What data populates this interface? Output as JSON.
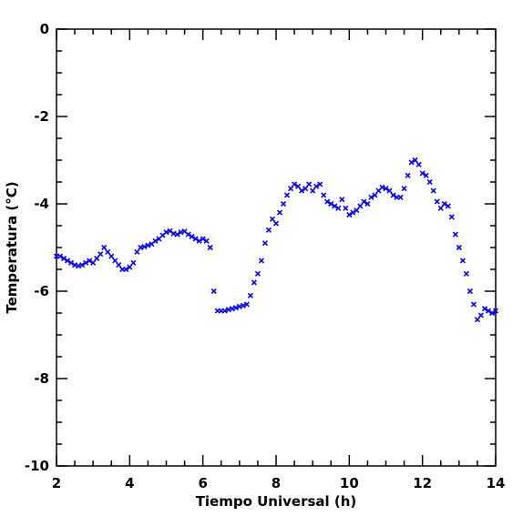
{
  "chart_data": {
    "type": "scatter",
    "xlabel": "Tiempo Universal (h)",
    "ylabel": "Temperatura (°C)",
    "xlim": [
      2,
      14
    ],
    "ylim": [
      -10,
      0
    ],
    "xticks": [
      2,
      4,
      6,
      8,
      10,
      12,
      14
    ],
    "yticks": [
      -10,
      -8,
      -6,
      -4,
      -2,
      0
    ],
    "xminorticks": [
      2.5,
      3,
      3.5,
      4.5,
      5,
      5.5,
      6.5,
      7,
      7.5,
      8.5,
      9,
      9.5,
      10.5,
      11,
      11.5,
      12.5,
      13,
      13.5
    ],
    "yminorticks": [
      -0.5,
      -1,
      -1.5,
      -2.5,
      -3,
      -3.5,
      -4.5,
      -5,
      -5.5,
      -6.5,
      -7,
      -7.5,
      -8.5,
      -9,
      -9.5
    ],
    "color": "#0000ff",
    "x": [
      2.0,
      2.1,
      2.2,
      2.3,
      2.4,
      2.5,
      2.6,
      2.7,
      2.8,
      2.9,
      3.0,
      3.1,
      3.2,
      3.3,
      3.4,
      3.5,
      3.6,
      3.7,
      3.8,
      3.9,
      4.0,
      4.1,
      4.2,
      4.3,
      4.4,
      4.5,
      4.6,
      4.7,
      4.8,
      4.9,
      5.0,
      5.1,
      5.2,
      5.3,
      5.4,
      5.5,
      5.6,
      5.7,
      5.8,
      5.9,
      6.0,
      6.1,
      6.2,
      6.3,
      6.4,
      6.5,
      6.6,
      6.7,
      6.8,
      6.9,
      7.0,
      7.1,
      7.2,
      7.3,
      7.4,
      7.5,
      7.6,
      7.7,
      7.8,
      7.9,
      8.0,
      8.1,
      8.2,
      8.3,
      8.4,
      8.5,
      8.6,
      8.7,
      8.8,
      8.9,
      9.0,
      9.1,
      9.2,
      9.3,
      9.4,
      9.5,
      9.6,
      9.7,
      9.8,
      9.9,
      10.0,
      10.1,
      10.2,
      10.3,
      10.4,
      10.5,
      10.6,
      10.7,
      10.8,
      10.9,
      11.0,
      11.1,
      11.2,
      11.3,
      11.4,
      11.5,
      11.6,
      11.7,
      11.8,
      11.9,
      12.0,
      12.1,
      12.2,
      12.3,
      12.4,
      12.5,
      12.6,
      12.7,
      12.8,
      12.9,
      13.0,
      13.1,
      13.2,
      13.3,
      13.4,
      13.5,
      13.6,
      13.7,
      13.8,
      13.9,
      14.0
    ],
    "values": [
      -5.2,
      -5.2,
      -5.25,
      -5.3,
      -5.35,
      -5.4,
      -5.42,
      -5.4,
      -5.35,
      -5.3,
      -5.35,
      -5.25,
      -5.15,
      -5.0,
      -5.1,
      -5.2,
      -5.3,
      -5.4,
      -5.5,
      -5.5,
      -5.45,
      -5.35,
      -5.1,
      -5.0,
      -4.98,
      -4.95,
      -4.92,
      -4.85,
      -4.8,
      -4.72,
      -4.65,
      -4.62,
      -4.68,
      -4.7,
      -4.65,
      -4.63,
      -4.7,
      -4.75,
      -4.8,
      -4.85,
      -4.8,
      -4.85,
      -5.0,
      -6.0,
      -6.45,
      -6.45,
      -6.45,
      -6.42,
      -6.4,
      -6.38,
      -6.35,
      -6.33,
      -6.3,
      -6.1,
      -5.8,
      -5.6,
      -5.3,
      -4.9,
      -4.6,
      -4.35,
      -4.45,
      -4.2,
      -4.0,
      -3.8,
      -3.65,
      -3.55,
      -3.6,
      -3.7,
      -3.65,
      -3.55,
      -3.7,
      -3.6,
      -3.55,
      -3.8,
      -3.95,
      -4.0,
      -4.05,
      -4.1,
      -3.9,
      -4.1,
      -4.25,
      -4.2,
      -4.15,
      -4.05,
      -3.95,
      -4.0,
      -3.85,
      -3.8,
      -3.7,
      -3.62,
      -3.65,
      -3.7,
      -3.8,
      -3.85,
      -3.85,
      -3.65,
      -3.35,
      -3.05,
      -3.0,
      -3.1,
      -3.3,
      -3.35,
      -3.5,
      -3.7,
      -3.95,
      -4.1,
      -4.0,
      -4.05,
      -4.3,
      -4.7,
      -5.0,
      -5.3,
      -5.6,
      -6.0,
      -6.3,
      -6.65,
      -6.55,
      -6.4,
      -6.45,
      -6.5,
      -6.45
    ]
  }
}
